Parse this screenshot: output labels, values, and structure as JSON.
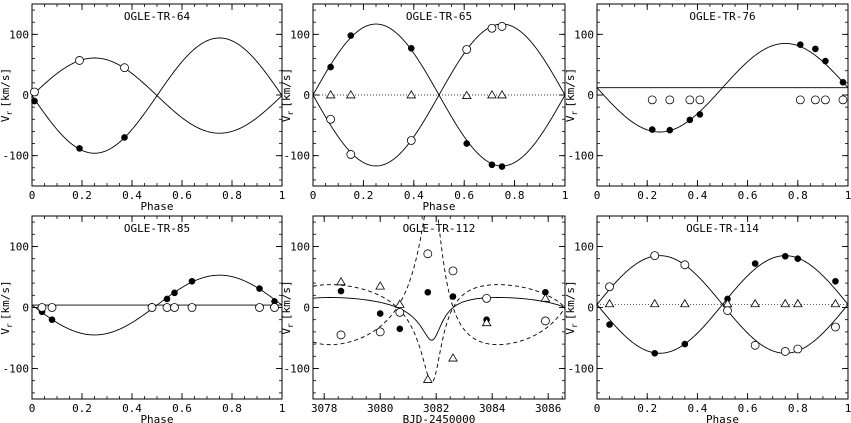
{
  "chart_data": [
    {
      "type": "scatter",
      "title": "OGLE-TR-64",
      "xlabel": "Phase",
      "ylabel": "V",
      "ylabel_sub": "r",
      "ylabel_unit": "[km/s]",
      "xlim": [
        0,
        1
      ],
      "ylim": [
        -150,
        150
      ],
      "xticks": [
        0,
        0.2,
        0.4,
        0.6,
        0.8,
        1
      ],
      "xtick_labels": [
        "0",
        "0.2",
        "0.4",
        "0.6",
        "0.8",
        "1"
      ],
      "yticks": [
        -100,
        0,
        100
      ],
      "ytick_labels": [
        "-100",
        "0",
        "100"
      ],
      "zero_line": "none",
      "curves": [
        {
          "kind": "sine",
          "style": "solid",
          "gamma": -1,
          "amp": -95,
          "period": 1,
          "phase0": 0
        },
        {
          "kind": "sine",
          "style": "solid",
          "gamma": -1,
          "amp": 62,
          "period": 1,
          "phase0": 0
        }
      ],
      "series": [
        {
          "marker": "filled-circle",
          "x": [
            0.01,
            0.19,
            0.37
          ],
          "y": [
            -10,
            -88,
            -70
          ]
        },
        {
          "marker": "open-circle",
          "x": [
            0.01,
            0.19,
            0.37
          ],
          "y": [
            5,
            57,
            45
          ]
        }
      ]
    },
    {
      "type": "scatter",
      "title": "OGLE-TR-65",
      "xlabel": "Phase",
      "ylabel": "V",
      "ylabel_sub": "r",
      "ylabel_unit": "[km/s]",
      "xlim": [
        0,
        1
      ],
      "ylim": [
        -150,
        150
      ],
      "xticks": [
        0,
        0.2,
        0.4,
        0.6,
        0.8,
        1
      ],
      "xtick_labels": [
        "0",
        "0.2",
        "0.4",
        "0.6",
        "0.8",
        "1"
      ],
      "yticks": [
        -100,
        0,
        100
      ],
      "ytick_labels": [
        "-100",
        "0",
        "100"
      ],
      "zero_line": "dotted",
      "curves": [
        {
          "kind": "sine",
          "style": "solid",
          "gamma": 0,
          "amp": 117,
          "period": 1,
          "phase0": 0
        },
        {
          "kind": "sine",
          "style": "solid",
          "gamma": 0,
          "amp": -117,
          "period": 1,
          "phase0": 0
        }
      ],
      "series": [
        {
          "marker": "filled-circle",
          "x": [
            0.07,
            0.15,
            0.39,
            0.61,
            0.71,
            0.75
          ],
          "y": [
            46,
            98,
            77,
            -80,
            -115,
            -118
          ]
        },
        {
          "marker": "open-circle",
          "x": [
            0.07,
            0.15,
            0.39,
            0.61,
            0.71,
            0.75
          ],
          "y": [
            -40,
            -98,
            -75,
            75,
            110,
            113
          ]
        },
        {
          "marker": "open-triangle",
          "x": [
            0.07,
            0.15,
            0.39,
            0.61,
            0.71,
            0.75
          ],
          "y": [
            0,
            0,
            0,
            -1,
            0,
            0
          ]
        }
      ]
    },
    {
      "type": "scatter",
      "title": "OGLE-TR-76",
      "xlabel": "",
      "ylabel": "V",
      "ylabel_sub": "r",
      "ylabel_unit": "[km/s]",
      "xlim": [
        0,
        1
      ],
      "ylim": [
        -150,
        150
      ],
      "xticks": [
        0,
        0.2,
        0.4,
        0.6,
        0.8,
        1
      ],
      "xtick_labels": [
        "0",
        "0.2",
        "0.4",
        "0.6",
        "0.8",
        "1"
      ],
      "yticks": [
        -100,
        0,
        100
      ],
      "ytick_labels": [
        "-100",
        "0",
        "100"
      ],
      "zero_line": "solid",
      "curves": [
        {
          "kind": "sine",
          "style": "solid",
          "gamma": 12,
          "amp": -73,
          "period": 1,
          "phase0": 0
        }
      ],
      "series": [
        {
          "marker": "filled-circle",
          "x": [
            0.22,
            0.29,
            0.37,
            0.41,
            0.81,
            0.87,
            0.91,
            0.98
          ],
          "y": [
            -57,
            -58,
            -41,
            -32,
            83,
            76,
            56,
            21
          ]
        },
        {
          "marker": "open-circle",
          "x": [
            0.22,
            0.29,
            0.37,
            0.41,
            0.81,
            0.87,
            0.91,
            0.98
          ],
          "y": [
            -8,
            -8,
            -8,
            -8,
            -8,
            -8,
            -8,
            -8
          ]
        }
      ]
    },
    {
      "type": "scatter",
      "title": "OGLE-TR-85",
      "xlabel": "Phase",
      "ylabel": "V",
      "ylabel_sub": "r",
      "ylabel_unit": "[km/s]",
      "xlim": [
        0,
        1
      ],
      "ylim": [
        -150,
        150
      ],
      "xticks": [
        0,
        0.2,
        0.4,
        0.6,
        0.8,
        1
      ],
      "xtick_labels": [
        "0",
        "0.2",
        "0.4",
        "0.6",
        "0.8",
        "1"
      ],
      "yticks": [
        -100,
        0,
        100
      ],
      "ytick_labels": [
        "-100",
        "0",
        "100"
      ],
      "zero_line": "solid",
      "curves": [
        {
          "kind": "sine",
          "style": "solid",
          "gamma": 4,
          "amp": -49,
          "period": 1,
          "phase0": 0
        }
      ],
      "series": [
        {
          "marker": "filled-circle",
          "x": [
            0.04,
            0.08,
            0.48,
            0.54,
            0.57,
            0.64,
            0.91,
            0.97
          ],
          "y": [
            -7,
            -20,
            2,
            14,
            24,
            43,
            31,
            10
          ]
        },
        {
          "marker": "open-circle",
          "x": [
            0.04,
            0.08,
            0.48,
            0.54,
            0.57,
            0.64,
            0.91,
            0.97
          ],
          "y": [
            0,
            0,
            0,
            0,
            0,
            0,
            0,
            0
          ]
        }
      ]
    },
    {
      "type": "scatter",
      "title": "OGLE-TR-112",
      "xlabel": "BJD-2450000",
      "ylabel": "V",
      "ylabel_sub": "r",
      "ylabel_unit": "[km/s]",
      "xlim": [
        3077.6,
        3086.6
      ],
      "ylim": [
        -150,
        150
      ],
      "xticks": [
        3078,
        3080,
        3082,
        3084,
        3086
      ],
      "xtick_labels": [
        "3078",
        "3080",
        "3082",
        "3084",
        "3086"
      ],
      "yticks": [
        -100,
        0,
        100
      ],
      "ytick_labels": [
        "-100",
        "0",
        "100"
      ],
      "zero_line": "none",
      "curves": [
        {
          "kind": "kepler",
          "style": "solid",
          "gamma": 0,
          "K": 35,
          "e": 0.55,
          "omega": 3.4,
          "period": 6.0,
          "t0": 3081.9
        },
        {
          "kind": "kepler",
          "style": "dashed",
          "gamma": 0,
          "K": 130,
          "e": 0.55,
          "omega": 0.26,
          "period": 6.0,
          "t0": 3081.9
        },
        {
          "kind": "kepler",
          "style": "dashed",
          "gamma": 0,
          "K": 80,
          "e": 0.55,
          "omega": 3.4,
          "period": 6.0,
          "t0": 3081.9
        }
      ],
      "series": [
        {
          "marker": "filled-circle",
          "x": [
            3078.6,
            3080.0,
            3080.7,
            3081.7,
            3082.6,
            3083.8,
            3085.9
          ],
          "y": [
            27,
            -10,
            -35,
            25,
            18,
            -20,
            25
          ]
        },
        {
          "marker": "open-circle",
          "x": [
            3078.6,
            3080.0,
            3080.7,
            3081.7,
            3082.6,
            3083.8,
            3085.9
          ],
          "y": [
            -45,
            -40,
            -8,
            88,
            60,
            15,
            -22
          ]
        },
        {
          "marker": "open-triangle",
          "x": [
            3078.6,
            3080.0,
            3080.7,
            3081.7,
            3082.6,
            3083.8,
            3085.9
          ],
          "y": [
            42,
            35,
            5,
            -118,
            -83,
            -25,
            15
          ]
        }
      ]
    },
    {
      "type": "scatter",
      "title": "OGLE-TR-114",
      "xlabel": "Phase",
      "ylabel": "V",
      "ylabel_sub": "r",
      "ylabel_unit": "[km/s]",
      "xlim": [
        0,
        1
      ],
      "ylim": [
        -150,
        150
      ],
      "xticks": [
        0,
        0.2,
        0.4,
        0.6,
        0.8,
        1
      ],
      "xtick_labels": [
        "0",
        "0.2",
        "0.4",
        "0.6",
        "0.8",
        "1"
      ],
      "yticks": [
        -100,
        0,
        100
      ],
      "ytick_labels": [
        "-100",
        "0",
        "100"
      ],
      "zero_line": "dotted",
      "curves": [
        {
          "kind": "sine",
          "style": "solid",
          "gamma": 5,
          "amp": -80,
          "period": 1,
          "phase0": 0
        },
        {
          "kind": "sine",
          "style": "solid",
          "gamma": 5,
          "amp": 80,
          "period": 1,
          "phase0": 0
        }
      ],
      "series": [
        {
          "marker": "filled-circle",
          "x": [
            0.05,
            0.23,
            0.35,
            0.52,
            0.63,
            0.75,
            0.8,
            0.95
          ],
          "y": [
            -28,
            -75,
            -60,
            14,
            72,
            84,
            80,
            43
          ]
        },
        {
          "marker": "open-circle",
          "x": [
            0.05,
            0.23,
            0.35,
            0.52,
            0.63,
            0.75,
            0.8,
            0.95
          ],
          "y": [
            34,
            85,
            70,
            -5,
            -62,
            -72,
            -68,
            -32
          ]
        },
        {
          "marker": "open-triangle",
          "x": [
            0.05,
            0.23,
            0.35,
            0.52,
            0.63,
            0.75,
            0.8,
            0.95
          ],
          "y": [
            6,
            6,
            6,
            6,
            6,
            6,
            6,
            6
          ]
        }
      ]
    }
  ]
}
